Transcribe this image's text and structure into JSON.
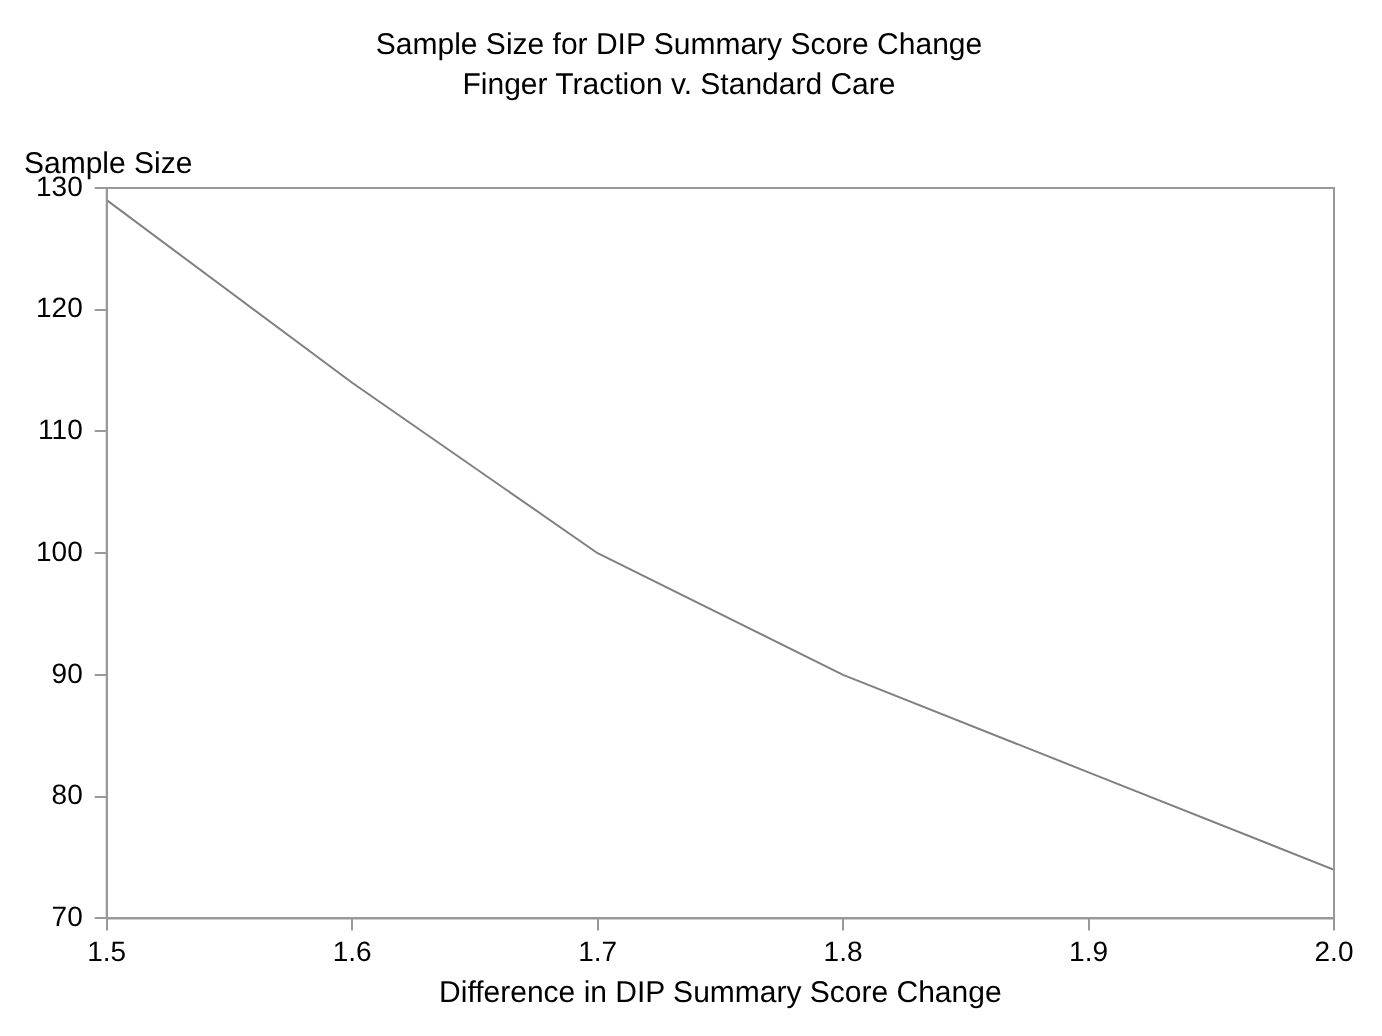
{
  "chart_data": {
    "type": "line",
    "title": "Sample Size for DIP Summary Score Change",
    "subtitle": "Finger Traction v. Standard Care",
    "xlabel": "Difference in DIP Summary Score Change",
    "ylabel": "Sample Size",
    "x": [
      1.5,
      1.6,
      1.7,
      1.8,
      1.9,
      2.0
    ],
    "series": [
      {
        "color": "#808080",
        "values": [
          129,
          114,
          100,
          90,
          82,
          74
        ]
      }
    ],
    "xlim": [
      1.5,
      2.0
    ],
    "xticks": [
      1.5,
      1.6,
      1.7,
      1.8,
      1.9,
      {
        "value": 2.0,
        "label": "2.0"
      }
    ],
    "ylim": [
      70,
      130
    ],
    "yticks": [
      70,
      80,
      90,
      100,
      110,
      120,
      130
    ],
    "grid": false,
    "legend": false,
    "marker": "none",
    "line_style": "solid"
  }
}
